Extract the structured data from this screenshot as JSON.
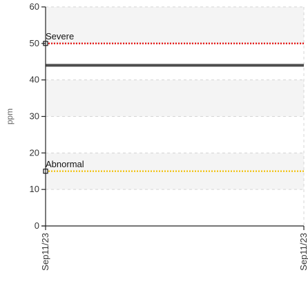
{
  "chart_data": {
    "type": "line",
    "ylabel": "ppm",
    "ylim": [
      0,
      60
    ],
    "y_ticks": [
      0,
      10,
      20,
      30,
      40,
      50,
      60
    ],
    "x_tick_labels": [
      "Sep11/23",
      "Sep11/23"
    ],
    "grid": true,
    "series": [
      {
        "values": [
          44,
          44
        ],
        "color": "#4d4d4d"
      }
    ],
    "thresholds": [
      {
        "label": "Severe",
        "value": 50,
        "color": "#e8201e"
      },
      {
        "label": "Abnormal",
        "value": 15,
        "color": "#f2c61f"
      }
    ],
    "band_colors": [
      "#f4f4f4",
      "#ffffff"
    ]
  }
}
